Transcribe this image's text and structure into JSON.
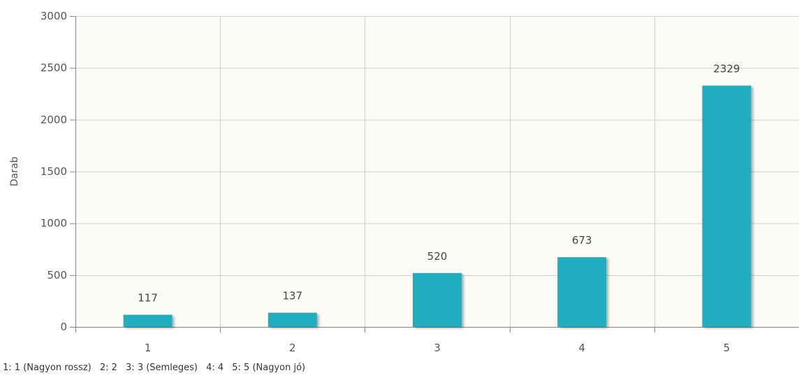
{
  "chart_data": {
    "type": "bar",
    "categories": [
      "1",
      "2",
      "3",
      "4",
      "5"
    ],
    "values": [
      117,
      137,
      520,
      673,
      2329
    ],
    "data_labels": [
      "117",
      "137",
      "520",
      "673",
      "2329"
    ],
    "ylabel": "Darab",
    "xlabel": "",
    "ylim": [
      0,
      3000
    ],
    "yticks": [
      0,
      500,
      1000,
      1500,
      2000,
      2500,
      3000
    ],
    "grid": true,
    "bar_color": "#22aec1",
    "plot_background": "#fcfbf6",
    "grid_color": "#d0d0d0"
  },
  "legend": {
    "items": [
      "1: 1 (Nagyon rossz)",
      "2: 2",
      "3: 3 (Semleges)",
      "4: 4",
      "5: 5 (Nagyon jó)"
    ]
  }
}
